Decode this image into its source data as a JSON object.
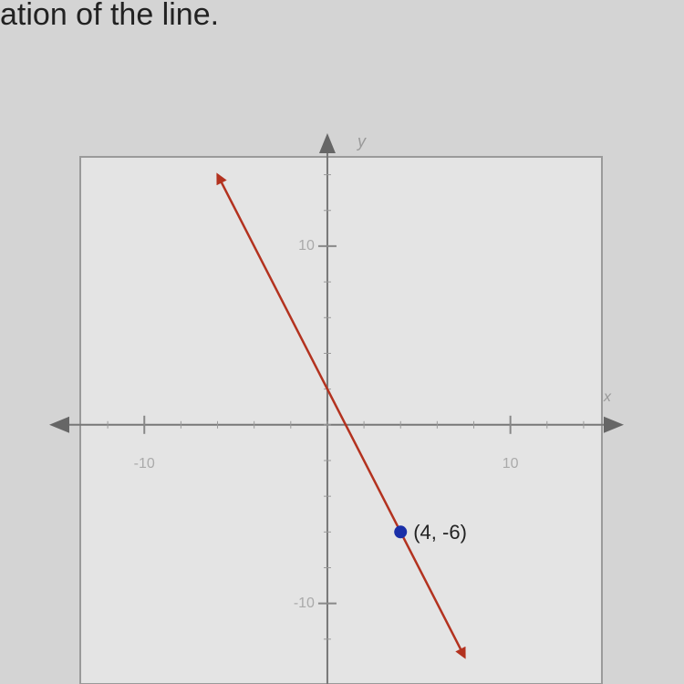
{
  "heading": "ation of the line.",
  "chart_data": {
    "type": "line",
    "x": [
      -6,
      7.5
    ],
    "series": [
      {
        "color": "#b3321f",
        "values": [
          14,
          -13
        ]
      }
    ],
    "point": {
      "x": 4,
      "y": -6,
      "label": "(4, -6)",
      "color": "#1a2fa8"
    },
    "xlabel": "x",
    "ylabel": "y",
    "xlim": [
      -13.5,
      15
    ],
    "ylim": [
      -14,
      15
    ],
    "xticks": [
      -10,
      10
    ],
    "yticks": [
      -10,
      10
    ]
  }
}
